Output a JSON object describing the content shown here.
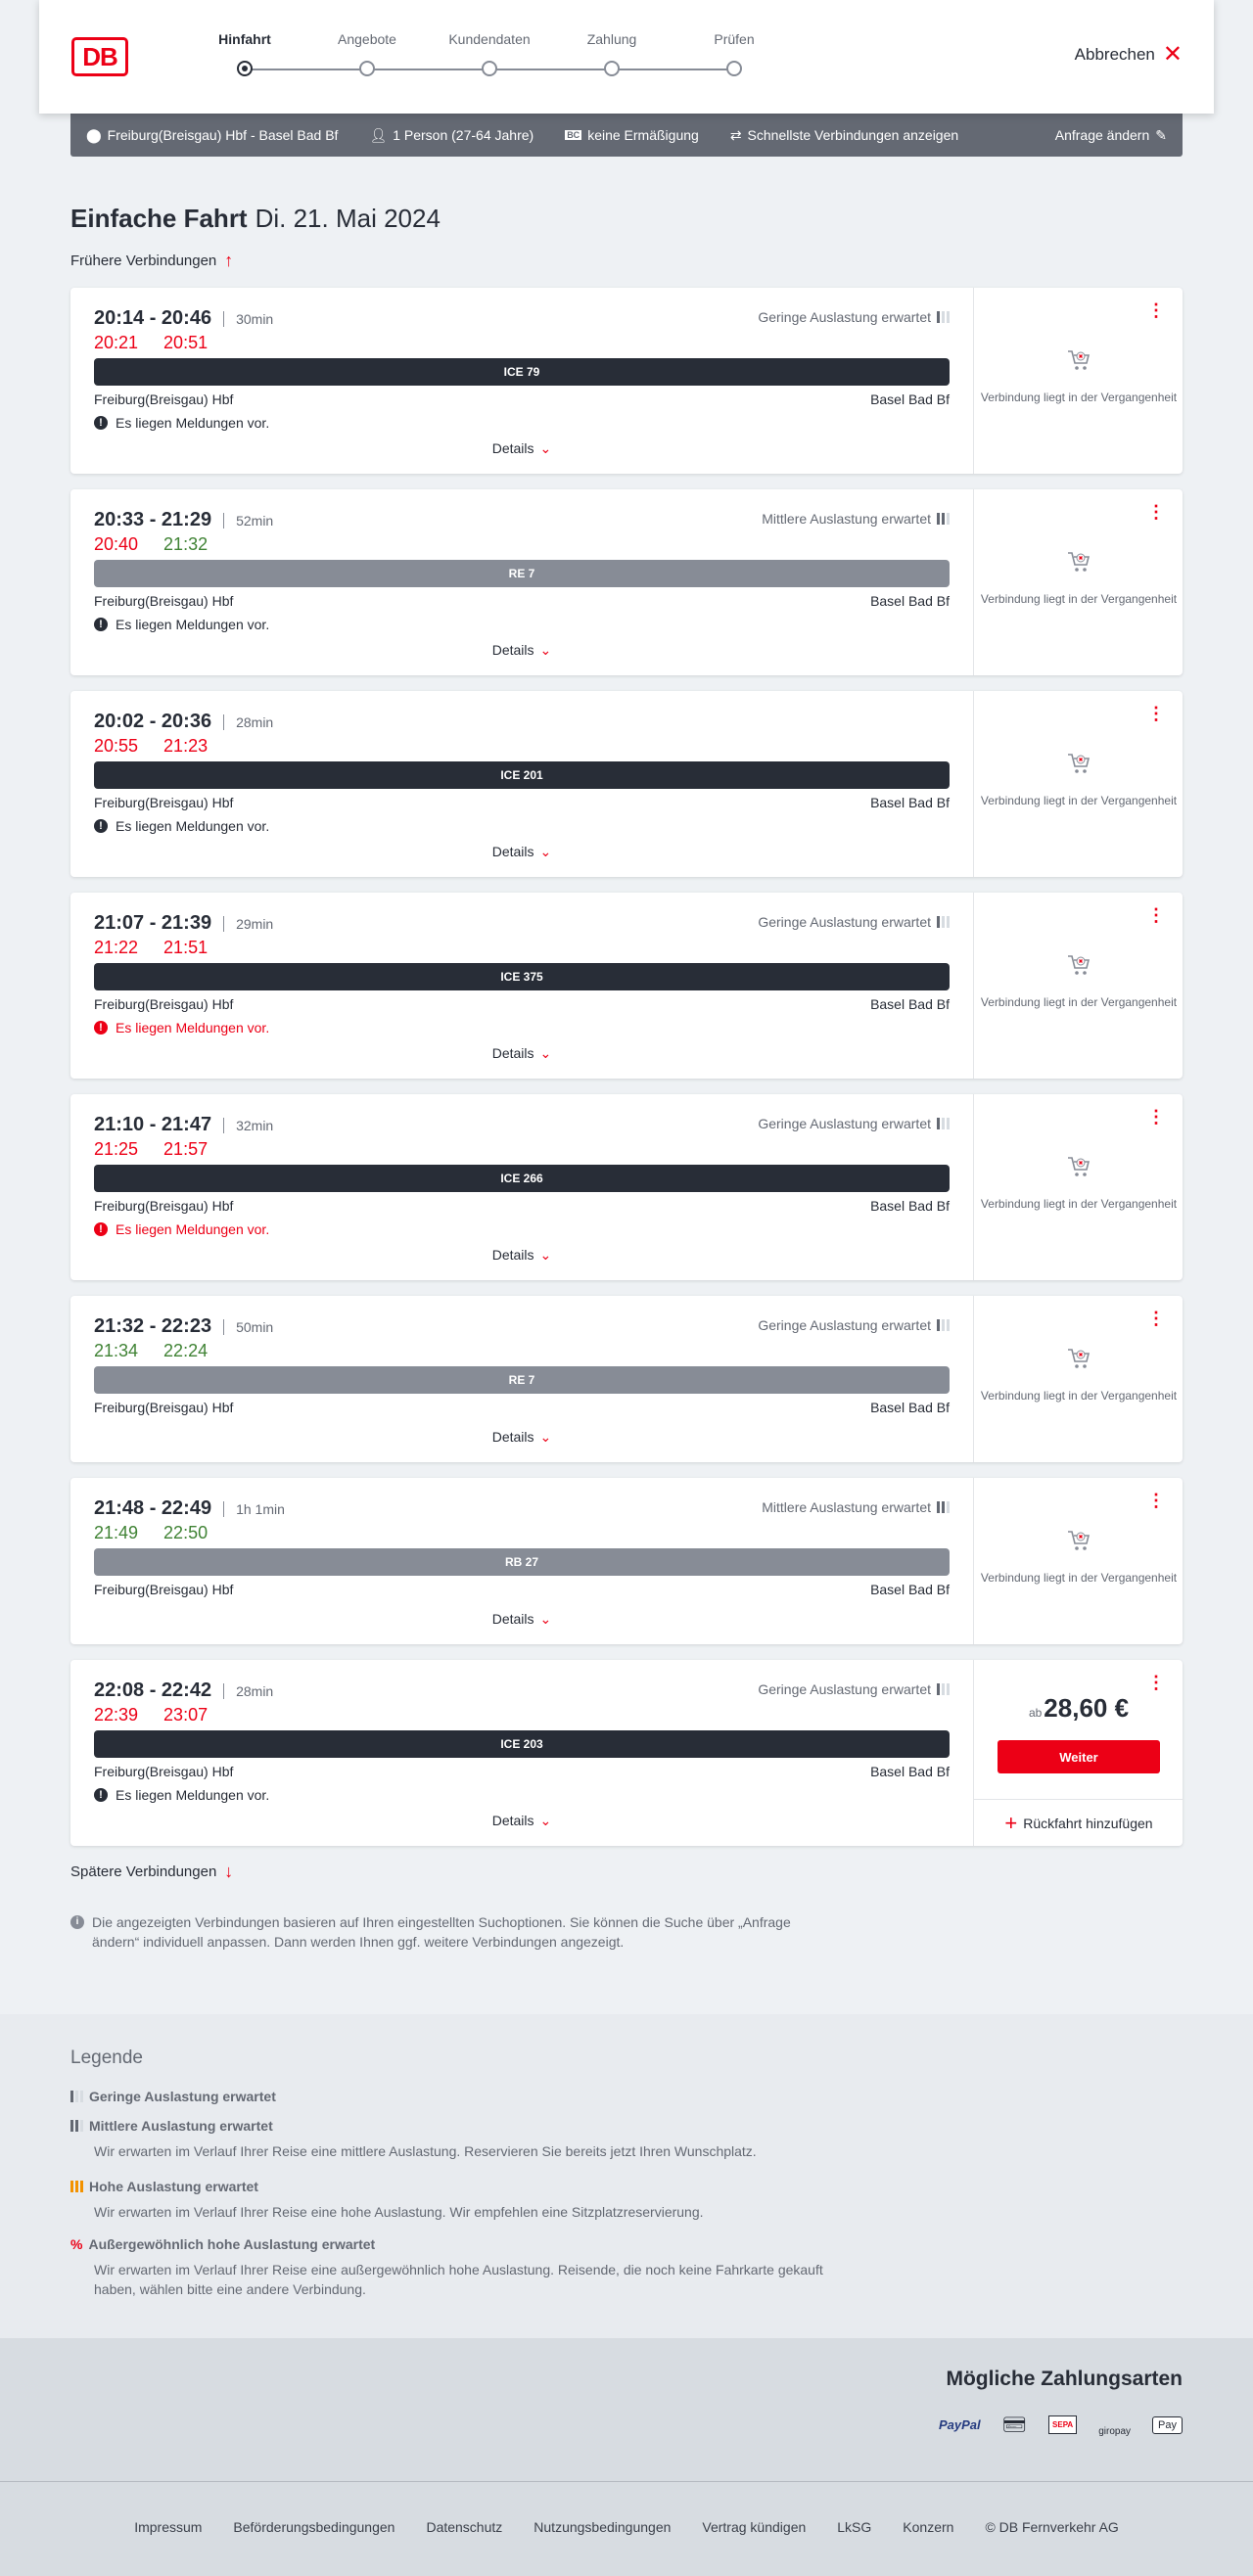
{
  "header": {
    "logo": "DB",
    "steps": [
      "Hinfahrt",
      "Angebote",
      "Kundendaten",
      "Zahlung",
      "Prüfen"
    ],
    "active_step": 0,
    "cancel": "Abbrechen"
  },
  "search": {
    "route": "Freiburg(Breisgau) Hbf - Basel Bad Bf",
    "passengers": "1 Person (27-64 Jahre)",
    "discount": "keine Ermäßigung",
    "fastest": "Schnellste Verbindungen anzeigen",
    "change": "Anfrage ändern"
  },
  "title": {
    "bold": "Einfache Fahrt",
    "date": "Di. 21. Mai 2024"
  },
  "earlier": "Frühere Verbindungen",
  "later": "Spätere Verbindungen",
  "colors": {
    "red": "#ec0016",
    "green": "#408335",
    "dark": "#282d37",
    "regional": "#878c96"
  },
  "connections": [
    {
      "time": "20:14 - 20:46",
      "duration": "30min",
      "rt_dep": "20:21",
      "rt_dep_status": "late",
      "rt_arr": "20:51",
      "rt_arr_status": "late",
      "load": "Geringe Auslastung erwartet",
      "load_level": 1,
      "train": "ICE 79",
      "train_type": "long",
      "from": "Freiburg(Breisgau) Hbf",
      "to": "Basel Bad Bf",
      "message": "Es liegen Meldungen vor.",
      "message_level": "info",
      "details": "Details",
      "status": "Verbindung liegt in der Vergangenheit"
    },
    {
      "time": "20:33 - 21:29",
      "duration": "52min",
      "rt_dep": "20:40",
      "rt_dep_status": "late",
      "rt_arr": "21:32",
      "rt_arr_status": "ontime",
      "load": "Mittlere Auslastung erwartet",
      "load_level": 2,
      "train": "RE 7",
      "train_type": "regional",
      "from": "Freiburg(Breisgau) Hbf",
      "to": "Basel Bad Bf",
      "message": "Es liegen Meldungen vor.",
      "message_level": "info",
      "details": "Details",
      "status": "Verbindung liegt in der Vergangenheit"
    },
    {
      "time": "20:02 - 20:36",
      "duration": "28min",
      "rt_dep": "20:55",
      "rt_dep_status": "late",
      "rt_arr": "21:23",
      "rt_arr_status": "late",
      "load": "",
      "load_level": 0,
      "train": "ICE 201",
      "train_type": "long",
      "from": "Freiburg(Breisgau) Hbf",
      "to": "Basel Bad Bf",
      "message": "Es liegen Meldungen vor.",
      "message_level": "info",
      "details": "Details",
      "status": "Verbindung liegt in der Vergangenheit"
    },
    {
      "time": "21:07 - 21:39",
      "duration": "29min",
      "rt_dep": "21:22",
      "rt_dep_status": "late",
      "rt_arr": "21:51",
      "rt_arr_status": "late",
      "load": "Geringe Auslastung erwartet",
      "load_level": 1,
      "train": "ICE 375",
      "train_type": "long",
      "from": "Freiburg(Breisgau) Hbf",
      "to": "Basel Bad Bf",
      "message": "Es liegen Meldungen vor.",
      "message_level": "warning",
      "details": "Details",
      "status": "Verbindung liegt in der Vergangenheit"
    },
    {
      "time": "21:10 - 21:47",
      "duration": "32min",
      "rt_dep": "21:25",
      "rt_dep_status": "late",
      "rt_arr": "21:57",
      "rt_arr_status": "late",
      "load": "Geringe Auslastung erwartet",
      "load_level": 1,
      "train": "ICE 266",
      "train_type": "long",
      "from": "Freiburg(Breisgau) Hbf",
      "to": "Basel Bad Bf",
      "message": "Es liegen Meldungen vor.",
      "message_level": "warning",
      "details": "Details",
      "status": "Verbindung liegt in der Vergangenheit"
    },
    {
      "time": "21:32 - 22:23",
      "duration": "50min",
      "rt_dep": "21:34",
      "rt_dep_status": "ontime",
      "rt_arr": "22:24",
      "rt_arr_status": "ontime",
      "load": "Geringe Auslastung erwartet",
      "load_level": 1,
      "train": "RE 7",
      "train_type": "regional",
      "from": "Freiburg(Breisgau) Hbf",
      "to": "Basel Bad Bf",
      "message": "",
      "details": "Details",
      "status": "Verbindung liegt in der Vergangenheit"
    },
    {
      "time": "21:48 - 22:49",
      "duration": "1h 1min",
      "rt_dep": "21:49",
      "rt_dep_status": "ontime",
      "rt_arr": "22:50",
      "rt_arr_status": "ontime",
      "load": "Mittlere Auslastung erwartet",
      "load_level": 2,
      "train": "RB 27",
      "train_type": "regional",
      "from": "Freiburg(Breisgau) Hbf",
      "to": "Basel Bad Bf",
      "message": "",
      "details": "Details",
      "status": "Verbindung liegt in der Vergangenheit"
    },
    {
      "time": "22:08 - 22:42",
      "duration": "28min",
      "rt_dep": "22:39",
      "rt_dep_status": "late",
      "rt_arr": "23:07",
      "rt_arr_status": "late",
      "load": "Geringe Auslastung erwartet",
      "load_level": 1,
      "train": "ICE 203",
      "train_type": "long",
      "from": "Freiburg(Breisgau) Hbf",
      "to": "Basel Bad Bf",
      "message": "Es liegen Meldungen vor.",
      "message_level": "info",
      "details": "Details",
      "price_prefix": "ab",
      "price": "28,60 €",
      "button": "Weiter",
      "return": "Rückfahrt hinzufügen"
    }
  ],
  "info": "Die angezeigten Verbindungen basieren auf Ihren eingestellten Suchoptionen. Sie können die Suche über „Anfrage ändern“ individuell anpassen. Dann werden Ihnen ggf. weitere Verbindungen angezeigt.",
  "legend": {
    "title": "Legende",
    "items": [
      {
        "title": "Geringe Auslastung erwartet",
        "text": "",
        "level": 1
      },
      {
        "title": "Mittlere Auslastung erwartet",
        "text": "Wir erwarten im Verlauf Ihrer Reise eine mittlere Auslastung. Reservieren Sie bereits jetzt Ihren Wunschplatz.",
        "level": 2
      },
      {
        "title": "Hohe Auslastung erwartet",
        "text": "Wir erwarten im Verlauf Ihrer Reise eine hohe Auslastung. Wir empfehlen eine Sitzplatzreservierung.",
        "level": 3
      },
      {
        "title": "Außergewöhnlich hohe Auslastung erwartet",
        "text": "Wir erwarten im Verlauf Ihrer Reise eine außergewöhnlich hohe Auslastung. Reisende, die noch keine Fahrkarte gekauft haben, wählen bitte eine andere Verbindung.",
        "level": 4
      }
    ]
  },
  "payment": {
    "title": "Mögliche Zahlungsarten",
    "methods": [
      "PayPal",
      "Kreditkarte",
      "SEPA",
      "giropay",
      "Pay"
    ]
  },
  "footer": [
    "Impressum",
    "Beförderungsbedingungen",
    "Datenschutz",
    "Nutzungsbedingungen",
    "Vertrag kündigen",
    "LkSG",
    "Konzern",
    "© DB Fernverkehr AG"
  ]
}
